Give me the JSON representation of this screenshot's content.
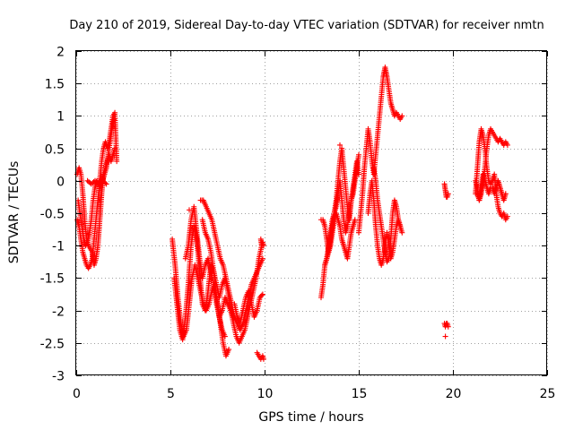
{
  "chart_data": {
    "type": "scatter",
    "title": "Day 210 of 2019, Sidereal Day-to-day VTEC variation (SDTVAR) for receiver nmtn",
    "xlabel": "GPS time / hours",
    "ylabel": "SDTVAR / TECUs",
    "xlim": [
      0,
      25
    ],
    "ylim": [
      -3,
      2
    ],
    "x_ticks": [
      "0",
      "5",
      "10",
      "15",
      "20",
      "25"
    ],
    "y_ticks": [
      "2",
      "1.5",
      "1",
      "0.5",
      "0",
      "-0.5",
      "-1",
      "-1.5",
      "-2",
      "-2.5",
      "-3"
    ],
    "grid": true,
    "marker": "+",
    "color": "#ff0000",
    "tracks": [
      {
        "x": [
          0.05,
          0.15,
          0.25,
          0.35,
          0.45,
          0.55,
          0.65,
          0.75,
          0.85,
          0.95,
          1.05,
          1.15,
          1.25,
          1.35,
          1.45,
          1.55,
          1.65,
          1.75,
          1.85,
          1.95,
          2.05,
          2.15
        ],
        "y": [
          -0.6,
          -0.7,
          -0.9,
          -1.1,
          -1.2,
          -1.3,
          -1.35,
          -1.3,
          -1.2,
          -0.9,
          -0.6,
          -0.3,
          0.0,
          0.3,
          0.5,
          0.6,
          0.5,
          0.6,
          0.8,
          1.0,
          1.05,
          0.3
        ]
      },
      {
        "x": [
          0.05,
          0.15,
          0.25,
          0.35,
          0.45,
          0.55,
          0.65,
          0.75,
          0.85,
          0.95,
          1.05,
          1.15,
          1.25,
          1.35,
          1.45,
          1.55,
          1.65,
          1.75,
          1.85,
          1.95,
          2.05
        ],
        "y": [
          0.1,
          0.2,
          0.1,
          -0.2,
          -0.6,
          -0.9,
          -1.0,
          -1.05,
          -1.1,
          -1.3,
          -1.2,
          -1.0,
          -0.6,
          -0.2,
          0.1,
          0.2,
          0.3,
          0.4,
          0.3,
          0.4,
          0.5
        ]
      },
      {
        "x": [
          0.1,
          0.2,
          0.3,
          0.4,
          0.5,
          0.6,
          0.7,
          0.8,
          0.9,
          1.0,
          1.1,
          1.2,
          1.3,
          1.4,
          1.5,
          1.6,
          1.7,
          1.8,
          1.9,
          2.0
        ],
        "y": [
          -0.3,
          -0.5,
          -0.7,
          -0.9,
          -1.0,
          -0.95,
          -0.8,
          -0.6,
          -0.3,
          -0.1,
          0.0,
          0.0,
          -0.1,
          0.0,
          0.1,
          0.2,
          0.4,
          0.6,
          0.8,
          0.95
        ]
      },
      {
        "x": [
          0.6,
          0.8,
          1.0,
          1.2,
          1.4,
          1.6
        ],
        "y": [
          0.0,
          -0.05,
          0.0,
          -0.05,
          0.0,
          -0.05
        ]
      },
      {
        "x": [
          5.1,
          5.25,
          5.4,
          5.55,
          5.7,
          5.85,
          6.0,
          6.15,
          6.3,
          6.45,
          6.6,
          6.75,
          6.9,
          7.05,
          7.2,
          7.35,
          7.5,
          7.65,
          7.8,
          7.95,
          8.1
        ],
        "y": [
          -0.9,
          -1.3,
          -1.8,
          -2.2,
          -2.4,
          -2.3,
          -1.9,
          -1.5,
          -1.3,
          -1.5,
          -1.7,
          -1.9,
          -2.0,
          -1.9,
          -1.7,
          -1.6,
          -1.9,
          -2.2,
          -2.5,
          -2.7,
          -2.6
        ]
      },
      {
        "x": [
          5.2,
          5.35,
          5.5,
          5.65,
          5.8,
          5.95,
          6.1,
          6.25,
          6.4,
          6.55,
          6.7,
          6.85,
          7.0,
          7.15,
          7.3,
          7.45,
          7.6,
          7.75,
          7.9
        ],
        "y": [
          -1.5,
          -1.9,
          -2.3,
          -2.45,
          -2.1,
          -1.6,
          -1.0,
          -0.7,
          -0.9,
          -1.4,
          -1.9,
          -2.0,
          -1.7,
          -1.3,
          -1.4,
          -1.8,
          -2.1,
          -2.3,
          -2.4
        ]
      },
      {
        "x": [
          5.8,
          5.95,
          6.1,
          6.25,
          6.4,
          6.55,
          6.7,
          6.85,
          7.0,
          7.15,
          7.3,
          7.45,
          7.6,
          7.75,
          7.9,
          8.05,
          8.2,
          8.35
        ],
        "y": [
          -1.2,
          -1.0,
          -0.6,
          -0.4,
          -0.8,
          -1.2,
          -1.5,
          -1.3,
          -1.2,
          -1.4,
          -1.6,
          -1.9,
          -2.1,
          -2.0,
          -1.8,
          -1.9,
          -2.0,
          -2.1
        ]
      },
      {
        "x": [
          6.6,
          6.75,
          6.9,
          7.05,
          7.2,
          7.35,
          7.5,
          7.65,
          7.8,
          7.95,
          8.1,
          8.25,
          8.4,
          8.55,
          8.7,
          8.85,
          9.0,
          9.15,
          9.3,
          9.45,
          9.6,
          9.75,
          9.9
        ],
        "y": [
          -0.3,
          -0.3,
          -0.4,
          -0.5,
          -0.6,
          -0.8,
          -1.0,
          -1.2,
          -1.3,
          -1.5,
          -1.7,
          -1.9,
          -2.1,
          -2.2,
          -2.3,
          -2.2,
          -2.0,
          -1.8,
          -1.6,
          -1.5,
          -1.4,
          -1.3,
          -1.2
        ]
      },
      {
        "x": [
          6.7,
          6.85,
          7.0,
          7.15,
          7.3,
          7.45,
          7.6,
          7.75,
          7.9,
          8.05,
          8.2,
          8.35,
          8.5,
          8.65,
          8.8,
          8.95,
          9.1,
          9.25,
          9.4,
          9.55,
          9.7,
          9.85
        ],
        "y": [
          -0.6,
          -0.8,
          -0.9,
          -1.1,
          -1.4,
          -1.6,
          -1.8,
          -1.6,
          -1.5,
          -1.7,
          -2.0,
          -2.2,
          -2.4,
          -2.5,
          -2.4,
          -2.3,
          -2.1,
          -1.9,
          -1.7,
          -1.5,
          -1.2,
          -1.0
        ]
      },
      {
        "x": [
          8.4,
          8.55,
          8.7,
          8.85,
          9.0,
          9.15,
          9.3,
          9.45,
          9.6,
          9.75,
          9.9
        ],
        "y": [
          -1.9,
          -2.1,
          -2.2,
          -2.0,
          -1.8,
          -1.7,
          -1.9,
          -2.1,
          -2.0,
          -1.8,
          -1.75
        ]
      },
      {
        "x": [
          9.6,
          9.7,
          9.8,
          9.9,
          9.95
        ],
        "y": [
          -2.65,
          -2.7,
          -2.75,
          -2.7,
          -2.75
        ]
      },
      {
        "x": [
          9.8,
          9.85,
          9.9,
          9.95
        ],
        "y": [
          -0.9,
          -1.0,
          -0.95,
          -1.0
        ]
      },
      {
        "x": [
          13.0,
          13.1,
          13.2,
          13.3,
          13.4,
          13.5,
          13.6,
          13.7,
          13.8,
          13.9,
          14.0,
          14.1,
          14.2,
          14.3,
          14.4,
          14.5,
          14.6,
          14.7,
          14.8,
          14.9,
          15.0
        ],
        "y": [
          -1.8,
          -1.6,
          -1.3,
          -1.2,
          -1.0,
          -0.8,
          -0.6,
          -0.5,
          -0.4,
          -0.2,
          0.0,
          -0.3,
          -0.6,
          -0.8,
          -0.7,
          -0.5,
          -0.3,
          -0.2,
          0.0,
          0.2,
          0.4
        ]
      },
      {
        "x": [
          13.0,
          13.1,
          13.2,
          13.3,
          13.4,
          13.5,
          13.6,
          13.7,
          13.8,
          13.9,
          14.0,
          14.1,
          14.2,
          14.3,
          14.4,
          14.5,
          14.6,
          14.7,
          14.8
        ],
        "y": [
          -0.6,
          -0.6,
          -0.7,
          -0.9,
          -1.1,
          -1.0,
          -0.8,
          -0.6,
          -0.5,
          -0.6,
          -0.7,
          -0.9,
          -1.0,
          -1.1,
          -1.2,
          -1.0,
          -0.8,
          -0.7,
          -0.6
        ]
      },
      {
        "x": [
          13.2,
          13.3,
          13.4,
          13.5,
          13.6,
          13.7,
          13.8,
          13.9,
          14.0,
          14.1,
          14.2,
          14.3,
          14.4,
          14.5,
          14.6,
          14.7,
          14.8,
          14.9,
          15.0
        ],
        "y": [
          -1.3,
          -1.2,
          -1.1,
          -0.9,
          -0.7,
          -0.5,
          -0.3,
          0.0,
          0.3,
          0.5,
          0.2,
          -0.1,
          -0.4,
          -0.6,
          -0.3,
          -0.1,
          0.1,
          0.3,
          0.1
        ]
      },
      {
        "x": [
          15.0,
          15.1,
          15.2,
          15.3,
          15.4,
          15.5,
          15.6,
          15.7,
          15.8,
          15.9,
          16.0,
          16.1,
          16.2,
          16.3,
          16.4,
          16.5,
          16.6,
          16.7,
          16.8,
          16.9,
          17.0,
          17.1,
          17.2,
          17.3
        ],
        "y": [
          -0.8,
          -0.5,
          -0.2,
          0.2,
          0.5,
          0.8,
          0.6,
          0.3,
          0.1,
          0.4,
          0.7,
          1.0,
          1.3,
          1.6,
          1.75,
          1.6,
          1.4,
          1.2,
          1.1,
          1.0,
          1.05,
          1.0,
          0.95,
          1.0
        ]
      },
      {
        "x": [
          15.5,
          15.6,
          15.7,
          15.8,
          15.9,
          16.0,
          16.1,
          16.2,
          16.3,
          16.4,
          16.5,
          16.6,
          16.7,
          16.8,
          16.9,
          17.0,
          17.1,
          17.2,
          17.3
        ],
        "y": [
          -0.5,
          -0.2,
          0.0,
          -0.3,
          -0.7,
          -1.0,
          -1.2,
          -1.3,
          -1.2,
          -1.0,
          -0.8,
          -1.0,
          -1.2,
          -1.1,
          -0.9,
          -0.7,
          -0.6,
          -0.7,
          -0.8
        ]
      },
      {
        "x": [
          15.8,
          15.9,
          16.0,
          16.1,
          16.2,
          16.3,
          16.4,
          16.5,
          16.6,
          16.7,
          16.8,
          16.9,
          17.0,
          17.1,
          17.2
        ],
        "y": [
          0.2,
          0.0,
          -0.3,
          -0.5,
          -0.7,
          -0.9,
          -1.1,
          -1.25,
          -1.2,
          -0.9,
          -0.5,
          -0.3,
          -0.4,
          -0.6,
          -0.7
        ]
      },
      {
        "x": [
          19.55,
          19.6,
          19.65,
          19.7,
          19.75
        ],
        "y": [
          -2.2,
          -2.25,
          -2.2,
          -2.2,
          -2.25
        ]
      },
      {
        "x": [
          19.55,
          19.6,
          19.65,
          19.7,
          19.75
        ],
        "y": [
          -0.05,
          -0.15,
          -0.25,
          -0.25,
          -0.2
        ]
      },
      {
        "x": [
          21.2,
          21.3,
          21.4,
          21.5,
          21.6,
          21.7,
          21.8,
          21.9,
          22.0,
          22.1,
          22.2,
          22.3,
          22.4,
          22.5,
          22.6,
          22.7,
          22.8,
          22.9
        ],
        "y": [
          -0.2,
          0.2,
          0.6,
          0.8,
          0.7,
          0.5,
          0.2,
          0.0,
          -0.05,
          0.0,
          0.1,
          -0.2,
          -0.4,
          -0.5,
          -0.55,
          -0.5,
          -0.6,
          -0.55
        ]
      },
      {
        "x": [
          21.2,
          21.3,
          21.4,
          21.5,
          21.6,
          21.7,
          21.8,
          21.9,
          22.0,
          22.1,
          22.2,
          22.3,
          22.4,
          22.5,
          22.6,
          22.7,
          22.8,
          22.9
        ],
        "y": [
          0.0,
          -0.1,
          -0.3,
          -0.2,
          0.0,
          0.2,
          0.5,
          0.7,
          0.8,
          0.75,
          0.7,
          0.65,
          0.6,
          0.65,
          0.6,
          0.55,
          0.6,
          0.55
        ]
      },
      {
        "x": [
          21.3,
          21.4,
          21.5,
          21.6,
          21.7,
          21.8,
          21.9,
          22.0,
          22.1,
          22.2,
          22.3,
          22.4,
          22.5,
          22.6,
          22.7,
          22.8
        ],
        "y": [
          -0.2,
          -0.3,
          -0.1,
          0.1,
          0.0,
          -0.1,
          -0.2,
          -0.1,
          -0.1,
          -0.2,
          -0.1,
          0.0,
          -0.1,
          -0.2,
          -0.3,
          -0.2
        ]
      }
    ],
    "points": [
      {
        "x": 19.6,
        "y": -2.4
      },
      {
        "x": 6.0,
        "y": -0.45
      },
      {
        "x": 14.0,
        "y": 0.55
      }
    ]
  }
}
